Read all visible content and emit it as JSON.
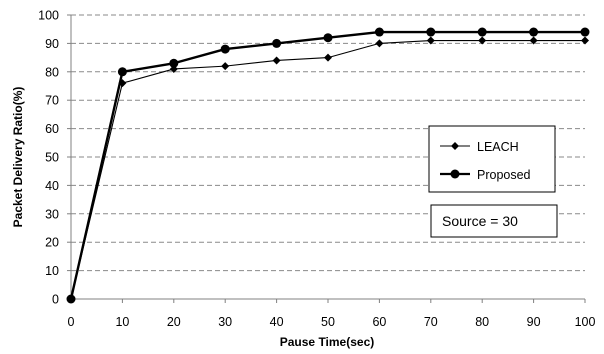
{
  "chart_data": {
    "type": "line",
    "xlabel": "Pause Time(sec)",
    "ylabel": "Packet Delivery Ratio(%)",
    "x": [
      0,
      10,
      20,
      30,
      40,
      50,
      60,
      70,
      80,
      90,
      100
    ],
    "xlim": [
      0,
      100
    ],
    "ylim": [
      0,
      100
    ],
    "xticks": [
      0,
      10,
      20,
      30,
      40,
      50,
      60,
      70,
      80,
      90,
      100
    ],
    "yticks": [
      0,
      10,
      20,
      30,
      40,
      50,
      60,
      70,
      80,
      90,
      100
    ],
    "grid": "horizontal dashed",
    "legend_placement": "right",
    "series": [
      {
        "name": "LEACH",
        "marker": "diamond",
        "color": "#000000",
        "values": [
          0,
          76,
          81,
          82,
          84,
          85,
          90,
          91,
          91,
          91,
          91
        ]
      },
      {
        "name": "Proposed",
        "marker": "circle",
        "color": "#000000",
        "values": [
          0,
          80,
          83,
          88,
          90,
          92,
          94,
          94,
          94,
          94,
          94
        ]
      }
    ],
    "annotation": "Source = 30"
  }
}
